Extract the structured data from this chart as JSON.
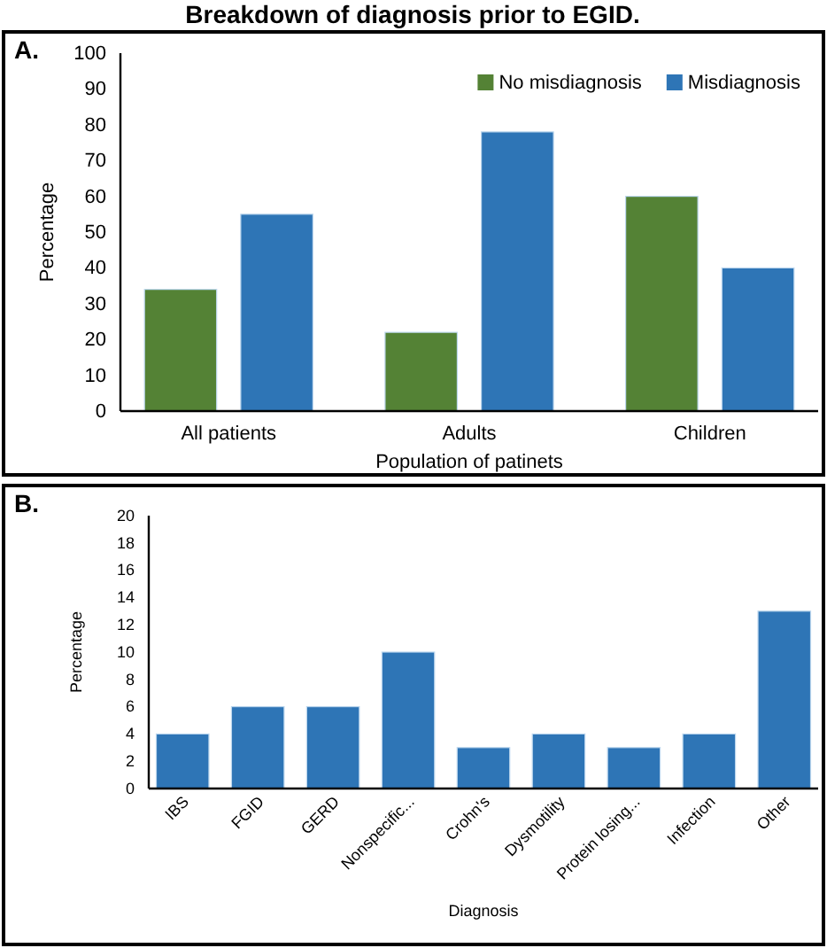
{
  "chart_data": [
    {
      "type": "bar",
      "title": "Breakdown of diagnosis prior to EGID.",
      "annotations": [
        "A."
      ],
      "xlabel": "Population of patinets",
      "ylabel": "Percentage",
      "categories": [
        "All patients",
        "Adults",
        "Children"
      ],
      "series": [
        {
          "name": "No misdiagnosis",
          "color": "#548235",
          "values": [
            34,
            22,
            60
          ]
        },
        {
          "name": "Misdiagnosis",
          "color": "#2e75b6",
          "values": [
            55,
            78,
            40
          ]
        }
      ],
      "ylim": [
        0,
        100
      ],
      "yticks": [
        0,
        10,
        20,
        30,
        40,
        50,
        60,
        70,
        80,
        90,
        100
      ],
      "grid": false,
      "legend": "top right"
    },
    {
      "type": "bar",
      "annotations": [
        "B."
      ],
      "xlabel": "Diagnosis",
      "ylabel": "Percentage",
      "categories": [
        "IBS",
        "FGID",
        "GERD",
        "Nonspecific...",
        "Crohn's",
        "Dysmotility",
        "Protein losing...",
        "Infection",
        "Other"
      ],
      "series": [
        {
          "color": "#2e75b6",
          "values": [
            4,
            6,
            6,
            10,
            3,
            4,
            3,
            4,
            13
          ]
        }
      ],
      "ylim": [
        0,
        20
      ],
      "yticks": [
        0,
        2,
        4,
        6,
        8,
        10,
        12,
        14,
        16,
        18,
        20
      ],
      "grid": false,
      "legend": false
    }
  ]
}
